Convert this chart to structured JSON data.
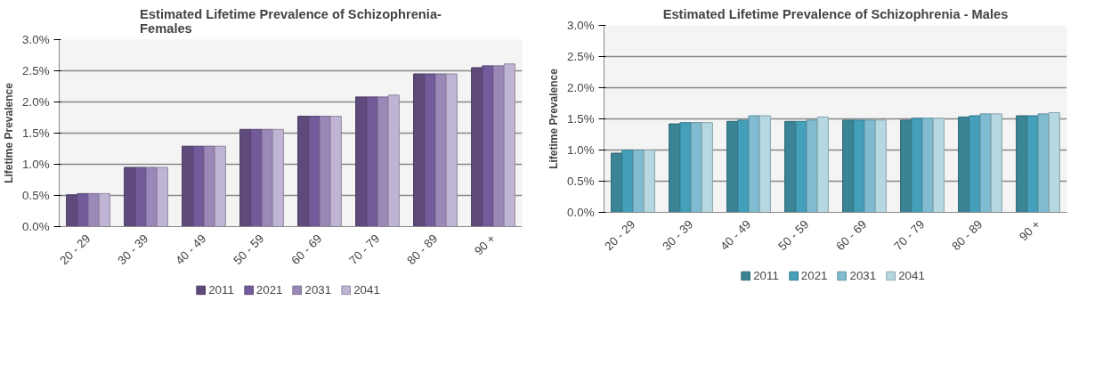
{
  "chart_data": [
    {
      "type": "bar",
      "title": "Estimated Lifetime Prevalence of Schizophrenia-\nFemales",
      "ylabel": "Lifetime Prevalence",
      "categories": [
        "20 - 29",
        "30 - 39",
        "40 - 49",
        "50 - 59",
        "60 - 69",
        "70 - 79",
        "80 - 89",
        "90 +"
      ],
      "series": [
        {
          "name": "2011",
          "color": "#5f4a7c",
          "values": [
            0.51,
            0.95,
            1.29,
            1.56,
            1.77,
            2.08,
            2.45,
            2.55
          ]
        },
        {
          "name": "2021",
          "color": "#735a9a",
          "values": [
            0.53,
            0.95,
            1.29,
            1.56,
            1.77,
            2.08,
            2.45,
            2.58
          ]
        },
        {
          "name": "2031",
          "color": "#9a88b8",
          "values": [
            0.53,
            0.95,
            1.29,
            1.56,
            1.77,
            2.08,
            2.45,
            2.58
          ]
        },
        {
          "name": "2041",
          "color": "#c0b4d4",
          "values": [
            0.53,
            0.95,
            1.29,
            1.56,
            1.77,
            2.11,
            2.45,
            2.61
          ]
        }
      ],
      "ylim": [
        0,
        3
      ],
      "yticks": [
        {
          "value": 0,
          "label": "0.0%"
        },
        {
          "value": 0.5,
          "label": "0.5%"
        },
        {
          "value": 1,
          "label": "1.0%"
        },
        {
          "value": 1.5,
          "label": "1.5%"
        },
        {
          "value": 2,
          "label": "2.0%"
        },
        {
          "value": 2.5,
          "label": "2.5%"
        },
        {
          "value": 3,
          "label": "3.0%"
        }
      ],
      "grid": "y",
      "legend": "bottom"
    },
    {
      "type": "bar",
      "title": "Estimated Lifetime Prevalence of Schizophrenia - Males",
      "ylabel": "Lifetime Prevalence",
      "categories": [
        "20 - 29",
        "30 - 39",
        "40 - 49",
        "50 - 59",
        "60 - 69",
        "70 - 79",
        "80 - 89",
        "90 +"
      ],
      "series": [
        {
          "name": "2011",
          "color": "#3a8496",
          "values": [
            0.95,
            1.42,
            1.46,
            1.46,
            1.48,
            1.48,
            1.53,
            1.55
          ]
        },
        {
          "name": "2021",
          "color": "#44a0ba",
          "values": [
            1.0,
            1.44,
            1.48,
            1.46,
            1.48,
            1.51,
            1.55,
            1.55
          ]
        },
        {
          "name": "2031",
          "color": "#7fbcd1",
          "values": [
            1.0,
            1.44,
            1.55,
            1.48,
            1.48,
            1.51,
            1.58,
            1.58
          ]
        },
        {
          "name": "2041",
          "color": "#b5d8e2",
          "values": [
            1.0,
            1.44,
            1.55,
            1.53,
            1.48,
            1.51,
            1.58,
            1.6
          ]
        }
      ],
      "ylim": [
        0,
        3
      ],
      "yticks": [
        {
          "value": 0,
          "label": "0.0%"
        },
        {
          "value": 0.5,
          "label": "0.5%"
        },
        {
          "value": 1,
          "label": "1.0%"
        },
        {
          "value": 1.5,
          "label": "1.5%"
        },
        {
          "value": 2,
          "label": "2.0%"
        },
        {
          "value": 2.5,
          "label": "2.5%"
        },
        {
          "value": 3,
          "label": "3.0%"
        }
      ],
      "grid": "y",
      "legend": "bottom"
    }
  ]
}
